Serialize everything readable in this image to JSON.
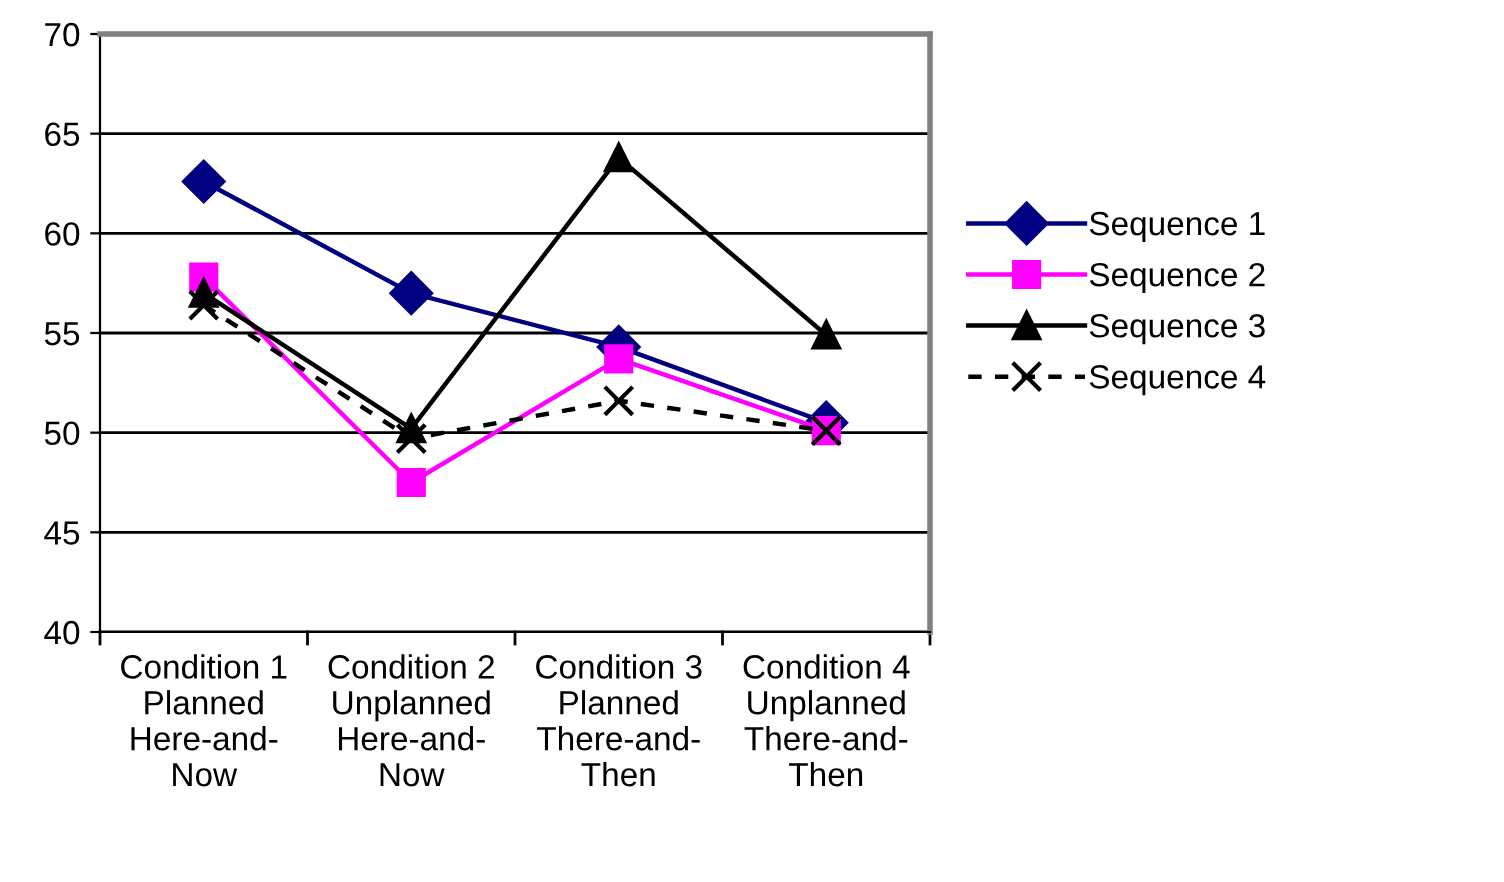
{
  "chart_data": {
    "type": "line",
    "categories": [
      "Condition 1\nPlanned\nHere-and-\nNow",
      "Condition 2\nUnplanned\nHere-and-\nNow",
      "Condition 3\nPlanned\nThere-and-\nThen",
      "Condition 4\nUnplanned\nThere-and-\nThen"
    ],
    "series": [
      {
        "name": "Sequence 1",
        "color": "#000080",
        "values": [
          62.6,
          57.0,
          54.3,
          50.5
        ],
        "marker": "diamond",
        "line_style": "solid"
      },
      {
        "name": "Sequence 2",
        "color": "#ff00ff",
        "values": [
          57.8,
          47.5,
          53.7,
          50.1
        ],
        "marker": "square",
        "line_style": "solid"
      },
      {
        "name": "Sequence 3",
        "color": "#000000",
        "values": [
          57.0,
          50.2,
          63.8,
          54.9
        ],
        "marker": "triangle",
        "line_style": "solid"
      },
      {
        "name": "Sequence 4",
        "color": "#000000",
        "values": [
          56.4,
          49.7,
          51.6,
          50.1
        ],
        "marker": "cross",
        "line_style": "dashed"
      }
    ],
    "ylim": [
      40,
      70
    ],
    "yticks": [
      40,
      45,
      50,
      55,
      60,
      65,
      70
    ],
    "grid": "y",
    "legend": "right"
  }
}
